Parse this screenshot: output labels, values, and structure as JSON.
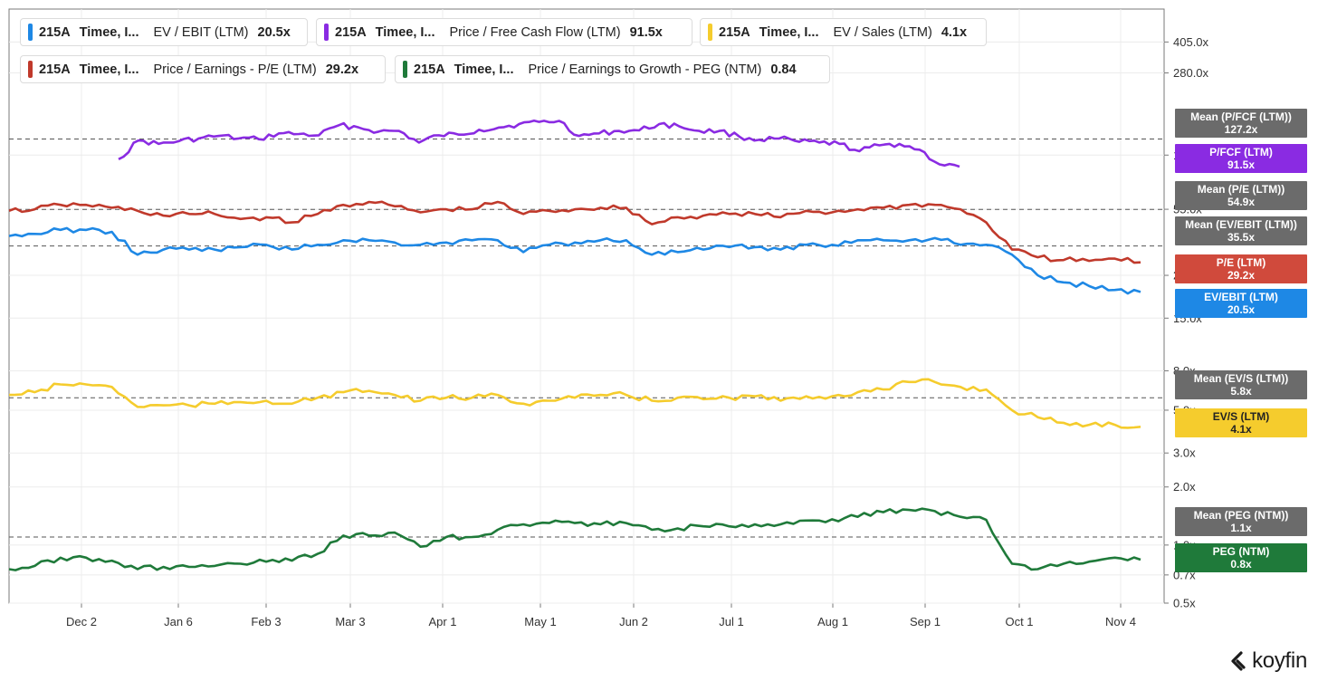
{
  "legend": [
    {
      "ticker": "215A",
      "company": "Timee, I...",
      "metric": "EV / EBIT (LTM)",
      "value": "20.5x",
      "color": "#1e88e5"
    },
    {
      "ticker": "215A",
      "company": "Timee, I...",
      "metric": "Price / Free Cash Flow (LTM)",
      "value": "91.5x",
      "color": "#8a2be2"
    },
    {
      "ticker": "215A",
      "company": "Timee, I...",
      "metric": "EV / Sales (LTM)",
      "value": "4.1x",
      "color": "#f5cc2d"
    },
    {
      "ticker": "215A",
      "company": "Timee, I...",
      "metric": "Price / Earnings - P/E (LTM)",
      "value": "29.2x",
      "color": "#c0392b"
    },
    {
      "ticker": "215A",
      "company": "Timee, I...",
      "metric": "Price / Earnings to Growth - PEG (NTM)",
      "value": "0.84",
      "color": "#1f7a3a"
    }
  ],
  "tags": [
    {
      "line1": "Mean (P/FCF (LTM))",
      "line2": "127.2x",
      "color": "#6b6b6b"
    },
    {
      "line1": "P/FCF (LTM)",
      "line2": "91.5x",
      "color": "#8a2be2"
    },
    {
      "line1": "Mean (P/E (LTM))",
      "line2": "54.9x",
      "color": "#6b6b6b"
    },
    {
      "line1": "Mean (EV/EBIT (LTM))",
      "line2": "35.5x",
      "color": "#6b6b6b"
    },
    {
      "line1": "P/E (LTM)",
      "line2": "29.2x",
      "color": "#d04a3c"
    },
    {
      "line1": "EV/EBIT (LTM)",
      "line2": "20.5x",
      "color": "#1e88e5"
    },
    {
      "line1": "Mean (EV/S (LTM))",
      "line2": "5.8x",
      "color": "#6b6b6b"
    },
    {
      "line1": "EV/S (LTM)",
      "line2": "4.1x",
      "color": "#f5cc2d",
      "dark": true
    },
    {
      "line1": "Mean (PEG (NTM))",
      "line2": "1.1x",
      "color": "#6b6b6b"
    },
    {
      "line1": "PEG (NTM)",
      "line2": "0.8x",
      "color": "#1f7a3a"
    }
  ],
  "logo": {
    "text": "koyfin"
  },
  "chart_data": {
    "type": "line",
    "x_tick_labels": [
      "Dec 2",
      "Jan 6",
      "Feb 3",
      "Mar 3",
      "Apr 1",
      "May 1",
      "Jun 2",
      "Jul 1",
      "Aug 1",
      "Sep 1",
      "Oct 1",
      "Nov 4"
    ],
    "y_tick_labels": [
      "405.0x",
      "280.0x",
      "105.0x",
      "55.0x",
      "25.0x",
      "15.0x",
      "8.0x",
      "5.0x",
      "3.0x",
      "2.0x",
      "1.0x",
      "0.7x",
      "0.5x"
    ],
    "y_scale": "log",
    "y_range": [
      0.5,
      600
    ],
    "grid": true,
    "series": [
      {
        "name": "P/FCF (LTM)",
        "color": "#8a2be2",
        "x_start": "Dec 12",
        "x_end": "Sep 10",
        "values": [
          100,
          125,
          120,
          124,
          128,
          132,
          128,
          127,
          136,
          135,
          133,
          150,
          146,
          139,
          140,
          122,
          133,
          134,
          142,
          146,
          152,
          156,
          158,
          132,
          136,
          140,
          141,
          152,
          148,
          140,
          140,
          131,
          126,
          128,
          123,
          122,
          120,
          110,
          118,
          120,
          112,
          94,
          91.5
        ]
      },
      {
        "name": "P/E (LTM)",
        "color": "#c0392b",
        "values": [
          54,
          55,
          58,
          58,
          56,
          54,
          51,
          52,
          52,
          49,
          50,
          47,
          52,
          58,
          60,
          57,
          53,
          55,
          55,
          60,
          52,
          54,
          55,
          56,
          56,
          46,
          50,
          51,
          52,
          52,
          50,
          54,
          53,
          55,
          56,
          58,
          58,
          55,
          47,
          34,
          31,
          30,
          29.7,
          30.5,
          29.2
        ]
      },
      {
        "name": "EV/EBIT (LTM)",
        "color": "#1e88e5",
        "values": [
          40,
          41,
          43,
          43,
          42,
          32,
          34,
          34,
          34,
          35,
          36,
          34,
          36,
          38,
          38,
          37,
          36,
          37,
          38,
          38,
          33,
          36,
          37,
          38,
          38,
          32,
          33,
          34,
          35,
          35,
          34,
          36,
          36,
          38,
          38,
          38,
          39,
          36,
          36,
          32,
          25,
          23,
          22,
          21,
          20.5
        ]
      },
      {
        "name": "EV/S (LTM)",
        "color": "#f5cc2d",
        "values": [
          6.0,
          6.2,
          6.8,
          6.8,
          6.6,
          5.2,
          5.3,
          5.3,
          5.4,
          5.5,
          5.6,
          5.4,
          5.8,
          6.2,
          6.3,
          6.0,
          5.6,
          5.8,
          5.8,
          6.0,
          5.4,
          5.6,
          5.8,
          6.0,
          6.0,
          5.6,
          5.8,
          5.7,
          5.8,
          5.9,
          5.6,
          5.9,
          5.9,
          6.2,
          6.4,
          7.0,
          7.0,
          6.6,
          6.4,
          5.0,
          4.6,
          4.3,
          4.2,
          4.2,
          4.1
        ]
      },
      {
        "name": "PEG (NTM)",
        "color": "#1f7a3a",
        "values": [
          0.75,
          0.78,
          0.86,
          0.86,
          0.83,
          0.75,
          0.77,
          0.77,
          0.78,
          0.8,
          0.82,
          0.83,
          0.9,
          1.12,
          1.12,
          1.16,
          0.98,
          1.1,
          1.1,
          1.2,
          1.28,
          1.3,
          1.3,
          1.28,
          1.3,
          1.2,
          1.22,
          1.25,
          1.25,
          1.28,
          1.28,
          1.34,
          1.36,
          1.4,
          1.48,
          1.52,
          1.5,
          1.4,
          1.35,
          0.8,
          0.75,
          0.8,
          0.82,
          0.86,
          0.84
        ]
      }
    ],
    "mean_lines": [
      {
        "name": "Mean (P/FCF (LTM))",
        "value": 127.2
      },
      {
        "name": "Mean (P/E (LTM))",
        "value": 54.9
      },
      {
        "name": "Mean (EV/EBIT (LTM))",
        "value": 35.5
      },
      {
        "name": "Mean (EV/S (LTM))",
        "value": 5.8
      },
      {
        "name": "Mean (PEG (NTM))",
        "value": 1.1
      }
    ]
  }
}
